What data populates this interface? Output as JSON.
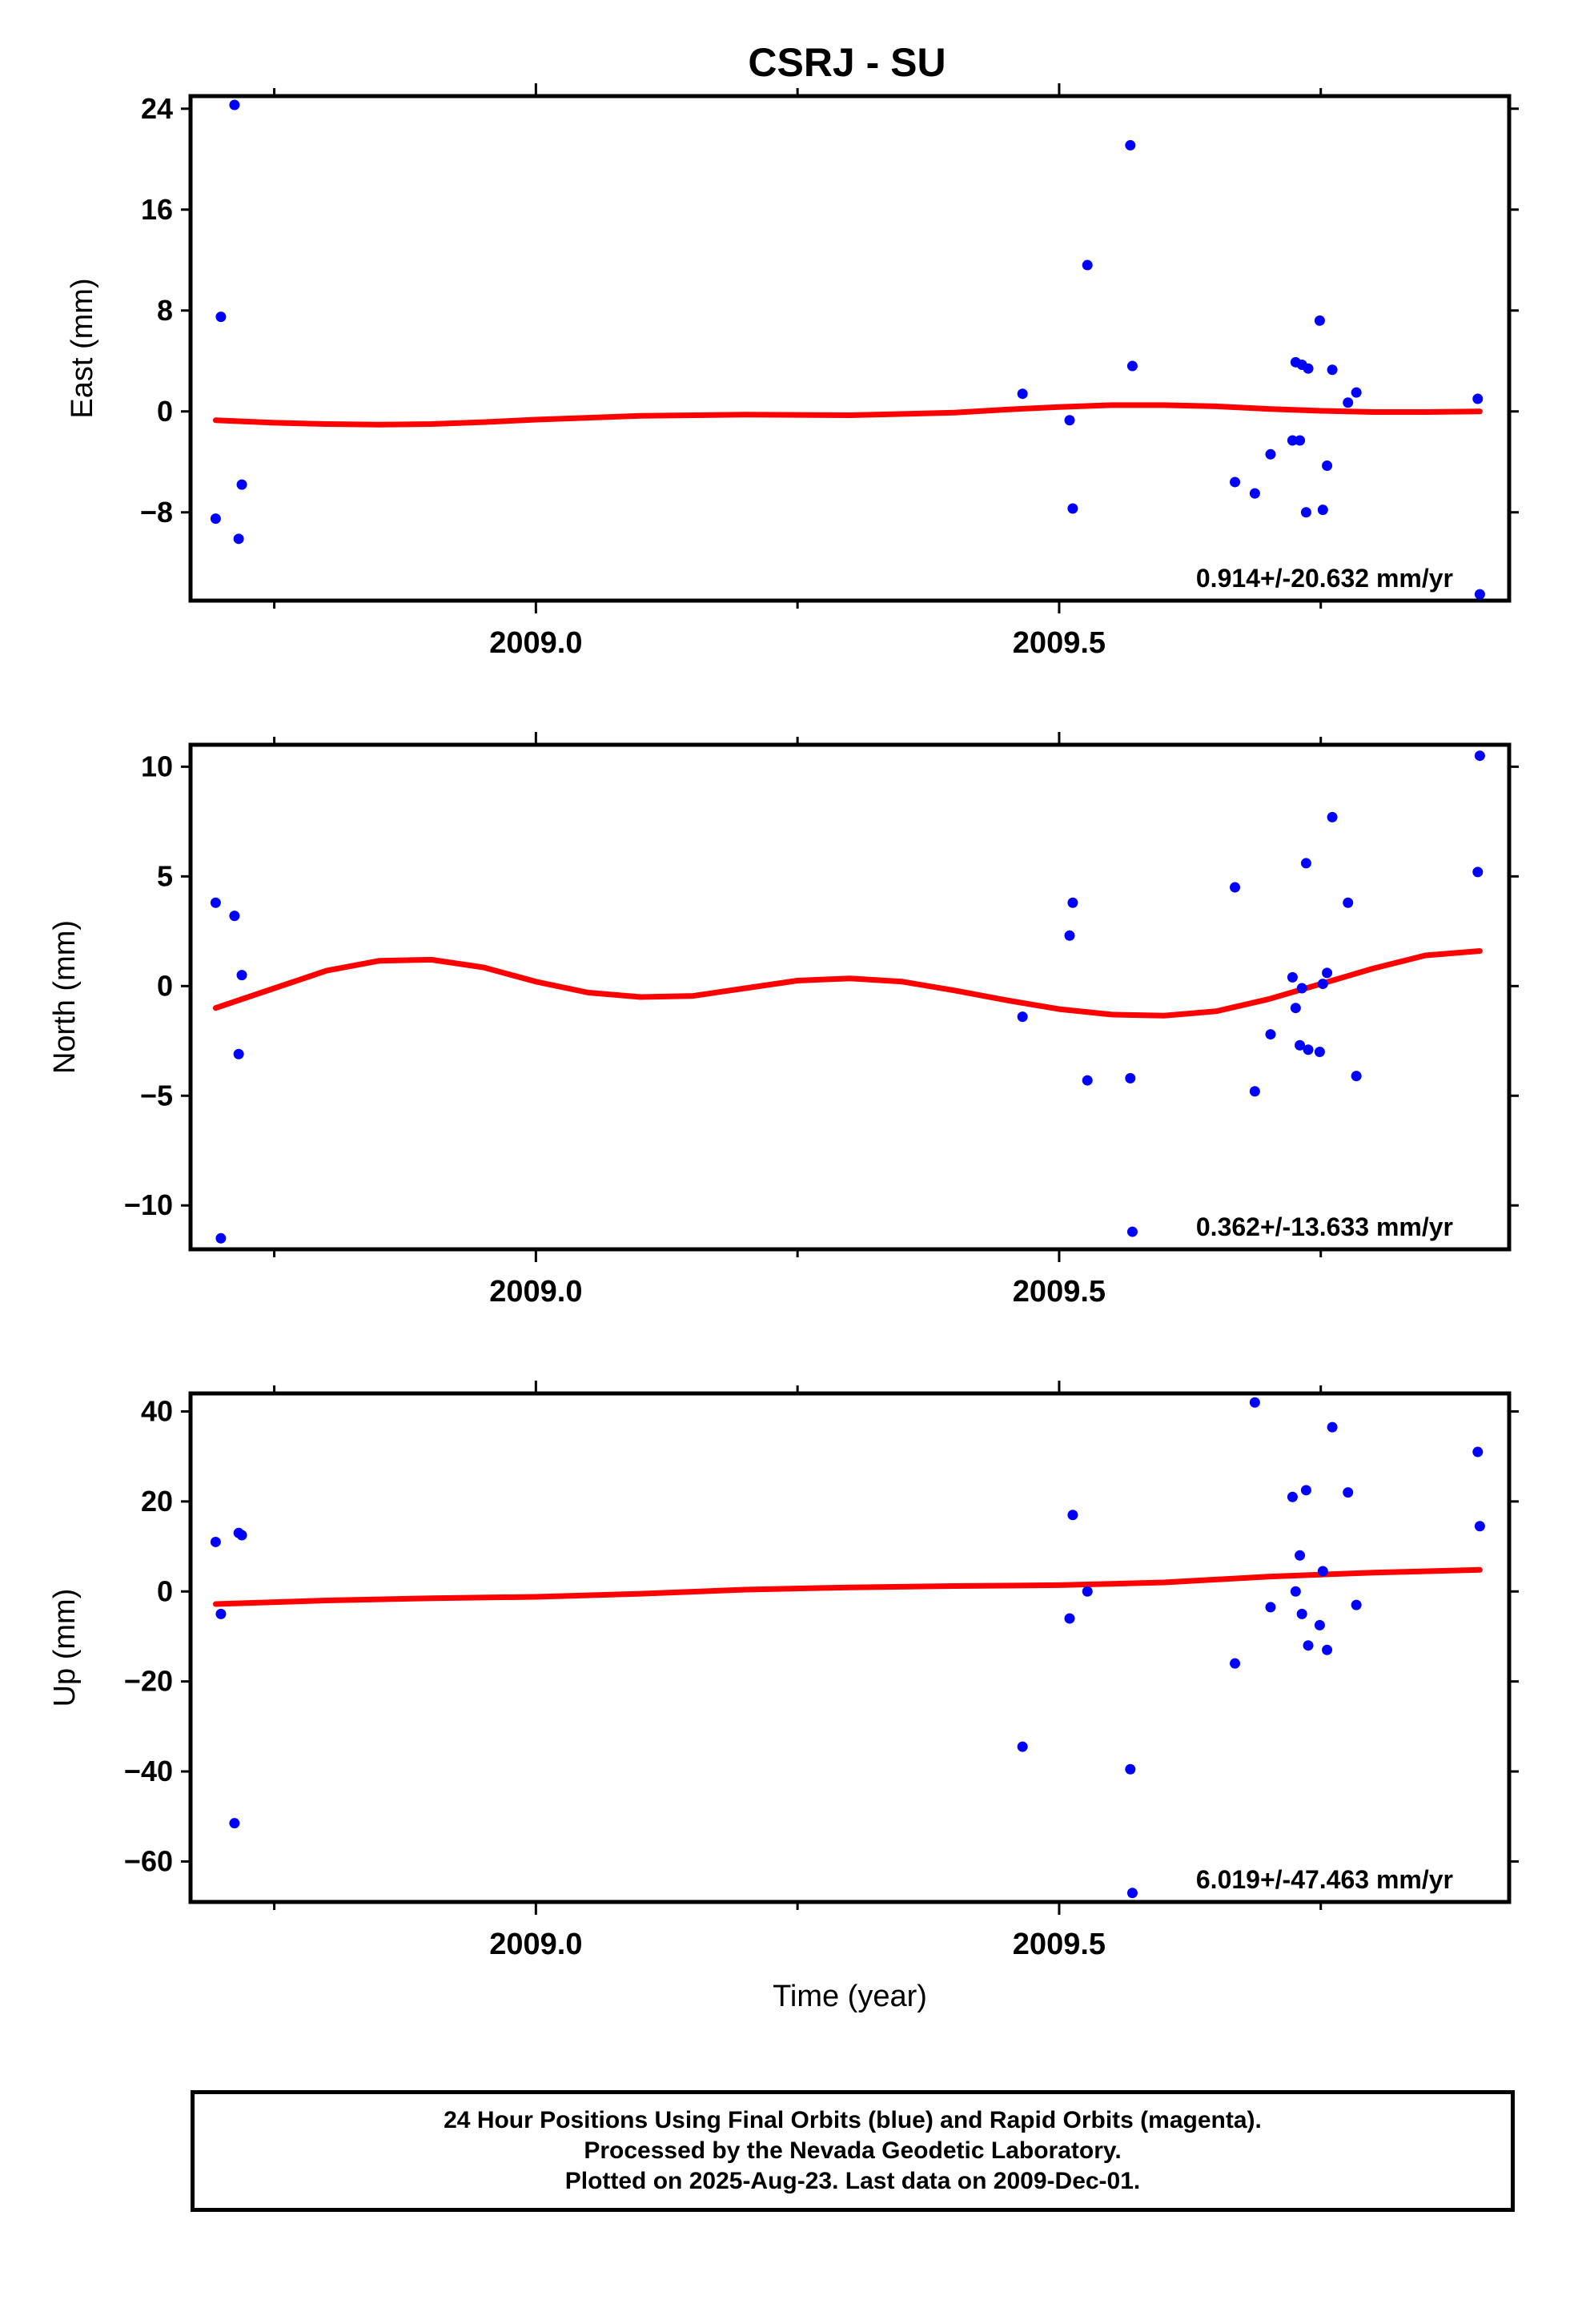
{
  "title": "CSRJ - SU",
  "colors": {
    "points": "#0000ff",
    "fit": "#ff0000",
    "axes": "#000000"
  },
  "chart_data": [
    {
      "type": "scatter",
      "ylabel": "East (mm)",
      "xlabel": "",
      "xlim": [
        2008.67,
        2009.93
      ],
      "ylim": [
        -15,
        25
      ],
      "yticks": [
        -8,
        0,
        8,
        16,
        24
      ],
      "ytick_labels": [
        "−8",
        "0",
        "8",
        "16",
        "24"
      ],
      "xticks": [
        2009.0,
        2009.5
      ],
      "xtick_labels": [
        "2009.0",
        "2009.5"
      ],
      "rate_label": "0.914+/-20.632 mm/yr",
      "points": {
        "x": [
          2008.694,
          2008.699,
          2008.712,
          2008.716,
          2008.719,
          2009.465,
          2009.51,
          2009.513,
          2009.527,
          2009.568,
          2009.57,
          2009.668,
          2009.687,
          2009.702,
          2009.723,
          2009.726,
          2009.73,
          2009.732,
          2009.736,
          2009.738,
          2009.749,
          2009.752,
          2009.756,
          2009.761,
          2009.776,
          2009.784,
          2009.9,
          2009.902
        ],
        "y": [
          -8.5,
          7.5,
          24.3,
          -10.1,
          -5.8,
          1.4,
          -0.7,
          -7.7,
          11.6,
          21.1,
          3.6,
          -5.6,
          -6.5,
          -3.4,
          -2.3,
          3.9,
          -2.3,
          3.7,
          -8.0,
          3.4,
          7.2,
          -7.8,
          -4.3,
          3.3,
          0.7,
          1.5,
          1.0,
          -14.5
        ]
      },
      "fit": {
        "x": [
          2008.694,
          2008.75,
          2008.8,
          2008.85,
          2008.9,
          2008.95,
          2009.0,
          2009.1,
          2009.2,
          2009.3,
          2009.4,
          2009.45,
          2009.5,
          2009.55,
          2009.6,
          2009.65,
          2009.7,
          2009.75,
          2009.8,
          2009.85,
          2009.902
        ],
        "y": [
          -0.7,
          -0.9,
          -1.0,
          -1.05,
          -1.0,
          -0.85,
          -0.65,
          -0.35,
          -0.25,
          -0.3,
          -0.1,
          0.15,
          0.35,
          0.5,
          0.5,
          0.4,
          0.2,
          0.05,
          -0.05,
          -0.05,
          0.0
        ]
      }
    },
    {
      "type": "scatter",
      "ylabel": "North (mm)",
      "xlabel": "",
      "xlim": [
        2008.67,
        2009.93
      ],
      "ylim": [
        -12,
        11
      ],
      "yticks": [
        -10,
        -5,
        0,
        5,
        10
      ],
      "ytick_labels": [
        "−10",
        "−5",
        "0",
        "5",
        "10"
      ],
      "xticks": [
        2009.0,
        2009.5
      ],
      "xtick_labels": [
        "2009.0",
        "2009.5"
      ],
      "rate_label": "0.362+/-13.633 mm/yr",
      "points": {
        "x": [
          2008.694,
          2008.699,
          2008.712,
          2008.716,
          2008.719,
          2009.465,
          2009.51,
          2009.513,
          2009.527,
          2009.568,
          2009.57,
          2009.668,
          2009.687,
          2009.702,
          2009.723,
          2009.726,
          2009.73,
          2009.732,
          2009.736,
          2009.738,
          2009.749,
          2009.752,
          2009.756,
          2009.761,
          2009.776,
          2009.784,
          2009.9,
          2009.902
        ],
        "y": [
          3.8,
          -11.5,
          3.2,
          -3.1,
          0.5,
          -1.4,
          2.3,
          3.8,
          -4.3,
          -4.2,
          -11.2,
          4.5,
          -4.8,
          -2.2,
          0.4,
          -1.0,
          -2.7,
          -0.1,
          5.6,
          -2.9,
          -3.0,
          0.1,
          0.6,
          7.7,
          3.8,
          -4.1,
          5.2,
          10.5
        ]
      },
      "fit": {
        "x": [
          2008.694,
          2008.75,
          2008.8,
          2008.85,
          2008.9,
          2008.95,
          2009.0,
          2009.05,
          2009.1,
          2009.15,
          2009.2,
          2009.25,
          2009.3,
          2009.35,
          2009.4,
          2009.45,
          2009.5,
          2009.55,
          2009.6,
          2009.65,
          2009.7,
          2009.75,
          2009.8,
          2009.85,
          2009.902
        ],
        "y": [
          -1.0,
          -0.1,
          0.7,
          1.15,
          1.2,
          0.85,
          0.2,
          -0.3,
          -0.5,
          -0.45,
          -0.1,
          0.25,
          0.35,
          0.2,
          -0.2,
          -0.65,
          -1.05,
          -1.3,
          -1.35,
          -1.15,
          -0.6,
          0.1,
          0.8,
          1.4,
          1.6
        ]
      }
    },
    {
      "type": "scatter",
      "ylabel": "Up (mm)",
      "xlabel": "Time (year)",
      "xlim": [
        2008.67,
        2009.93
      ],
      "ylim": [
        -69,
        44
      ],
      "yticks": [
        -60,
        -40,
        -20,
        0,
        20,
        40
      ],
      "ytick_labels": [
        "−60",
        "−40",
        "−20",
        "0",
        "20",
        "40"
      ],
      "xticks": [
        2009.0,
        2009.5
      ],
      "xtick_labels": [
        "2009.0",
        "2009.5"
      ],
      "rate_label": "6.019+/-47.463 mm/yr",
      "points": {
        "x": [
          2008.694,
          2008.699,
          2008.712,
          2008.716,
          2008.719,
          2009.465,
          2009.51,
          2009.513,
          2009.527,
          2009.568,
          2009.57,
          2009.668,
          2009.687,
          2009.702,
          2009.723,
          2009.726,
          2009.73,
          2009.732,
          2009.736,
          2009.738,
          2009.749,
          2009.752,
          2009.756,
          2009.761,
          2009.776,
          2009.784,
          2009.9,
          2009.902
        ],
        "y": [
          11,
          -5,
          -51.5,
          13,
          12.5,
          -34.5,
          -6,
          17,
          0,
          -39.5,
          -67,
          -16,
          42,
          -3.5,
          21,
          0,
          8,
          -5,
          22.5,
          -12,
          -7.5,
          4.5,
          -13,
          36.5,
          22,
          -3,
          31,
          14.5
        ]
      },
      "fit": {
        "x": [
          2008.694,
          2008.8,
          2008.9,
          2009.0,
          2009.1,
          2009.2,
          2009.3,
          2009.4,
          2009.5,
          2009.6,
          2009.7,
          2009.8,
          2009.902
        ],
        "y": [
          -2.8,
          -2.0,
          -1.5,
          -1.2,
          -0.5,
          0.4,
          0.9,
          1.2,
          1.4,
          2.0,
          3.3,
          4.2,
          4.8
        ]
      }
    }
  ],
  "footer": {
    "line1": "24 Hour Positions Using Final Orbits (blue) and Rapid Orbits (magenta).",
    "line2": "Processed by the Nevada Geodetic Laboratory.",
    "line3": "Plotted on 2025-Aug-23. Last data on 2009-Dec-01."
  }
}
